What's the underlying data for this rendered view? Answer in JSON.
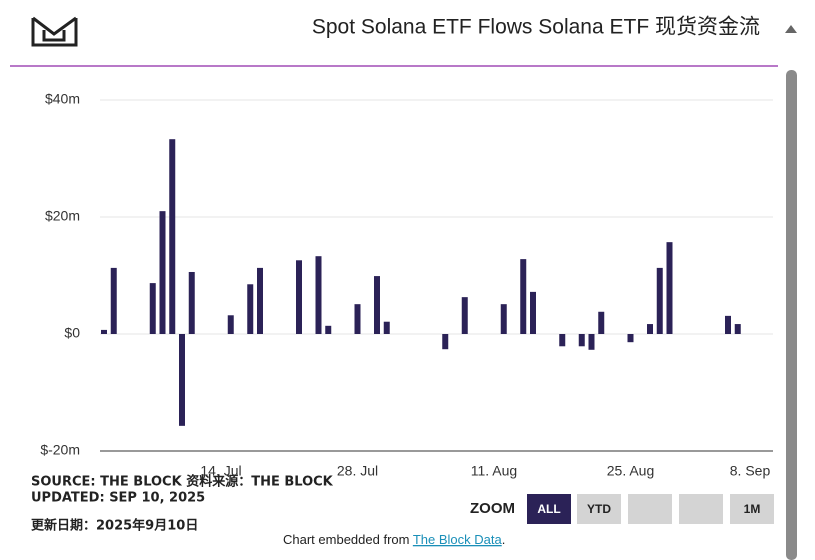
{
  "chart_data": {
    "type": "bar",
    "title": "Spot Solana ETF Flows  Solana ETF 现货资金流",
    "categories": [
      null,
      null,
      null,
      null,
      null,
      null,
      null,
      null,
      null,
      null,
      null,
      null,
      "14. Jul",
      null,
      null,
      null,
      null,
      null,
      null,
      null,
      null,
      null,
      null,
      null,
      null,
      null,
      "28. Jul",
      null,
      null,
      null,
      null,
      null,
      null,
      null,
      null,
      null,
      null,
      null,
      null,
      null,
      "11. Aug",
      null,
      null,
      null,
      null,
      null,
      null,
      null,
      null,
      null,
      null,
      null,
      null,
      null,
      "25. Aug",
      null,
      null,
      null,
      null,
      null,
      null,
      null,
      null,
      null,
      null,
      null,
      null,
      null,
      "8. Sep"
    ],
    "values": [
      0.7,
      11.3,
      null,
      null,
      null,
      8.7,
      21,
      33.3,
      -15.7,
      10.6,
      null,
      null,
      null,
      3.2,
      null,
      8.5,
      11.3,
      null,
      null,
      null,
      12.6,
      null,
      13.3,
      1.4,
      null,
      null,
      5.1,
      null,
      9.9,
      2.1,
      null,
      null,
      null,
      null,
      null,
      -2.6,
      null,
      6.3,
      null,
      null,
      null,
      5.1,
      null,
      12.8,
      7.2,
      null,
      null,
      -2.1,
      null,
      -2.1,
      -2.7,
      3.8,
      null,
      null,
      -1.4,
      null,
      1.7,
      11.3,
      15.7,
      null,
      null,
      null,
      null,
      null,
      3.1,
      1.7,
      null,
      null,
      null
    ],
    "color": "#2b2257",
    "ylim": [
      -20,
      40
    ],
    "yticks": [
      {
        "value": -20,
        "label": "$-20m"
      },
      {
        "value": 0,
        "label": "$0"
      },
      {
        "value": 20,
        "label": "$20m"
      },
      {
        "value": 40,
        "label": "$40m"
      }
    ],
    "grid": true,
    "source": "SOURCE: THE BLOCK  资料来源：THE BLOCK",
    "updated": "UPDATED: SEP 10, 2025",
    "updated_cn": "更新日期：2025年9月10日",
    "zoom_label": "ZOOM",
    "zoom_buttons": [
      "ALL",
      "YTD",
      "1M"
    ],
    "footer": {
      "prefix": "Chart embedded from",
      "link": "The Block Data",
      "suffix": "."
    }
  }
}
